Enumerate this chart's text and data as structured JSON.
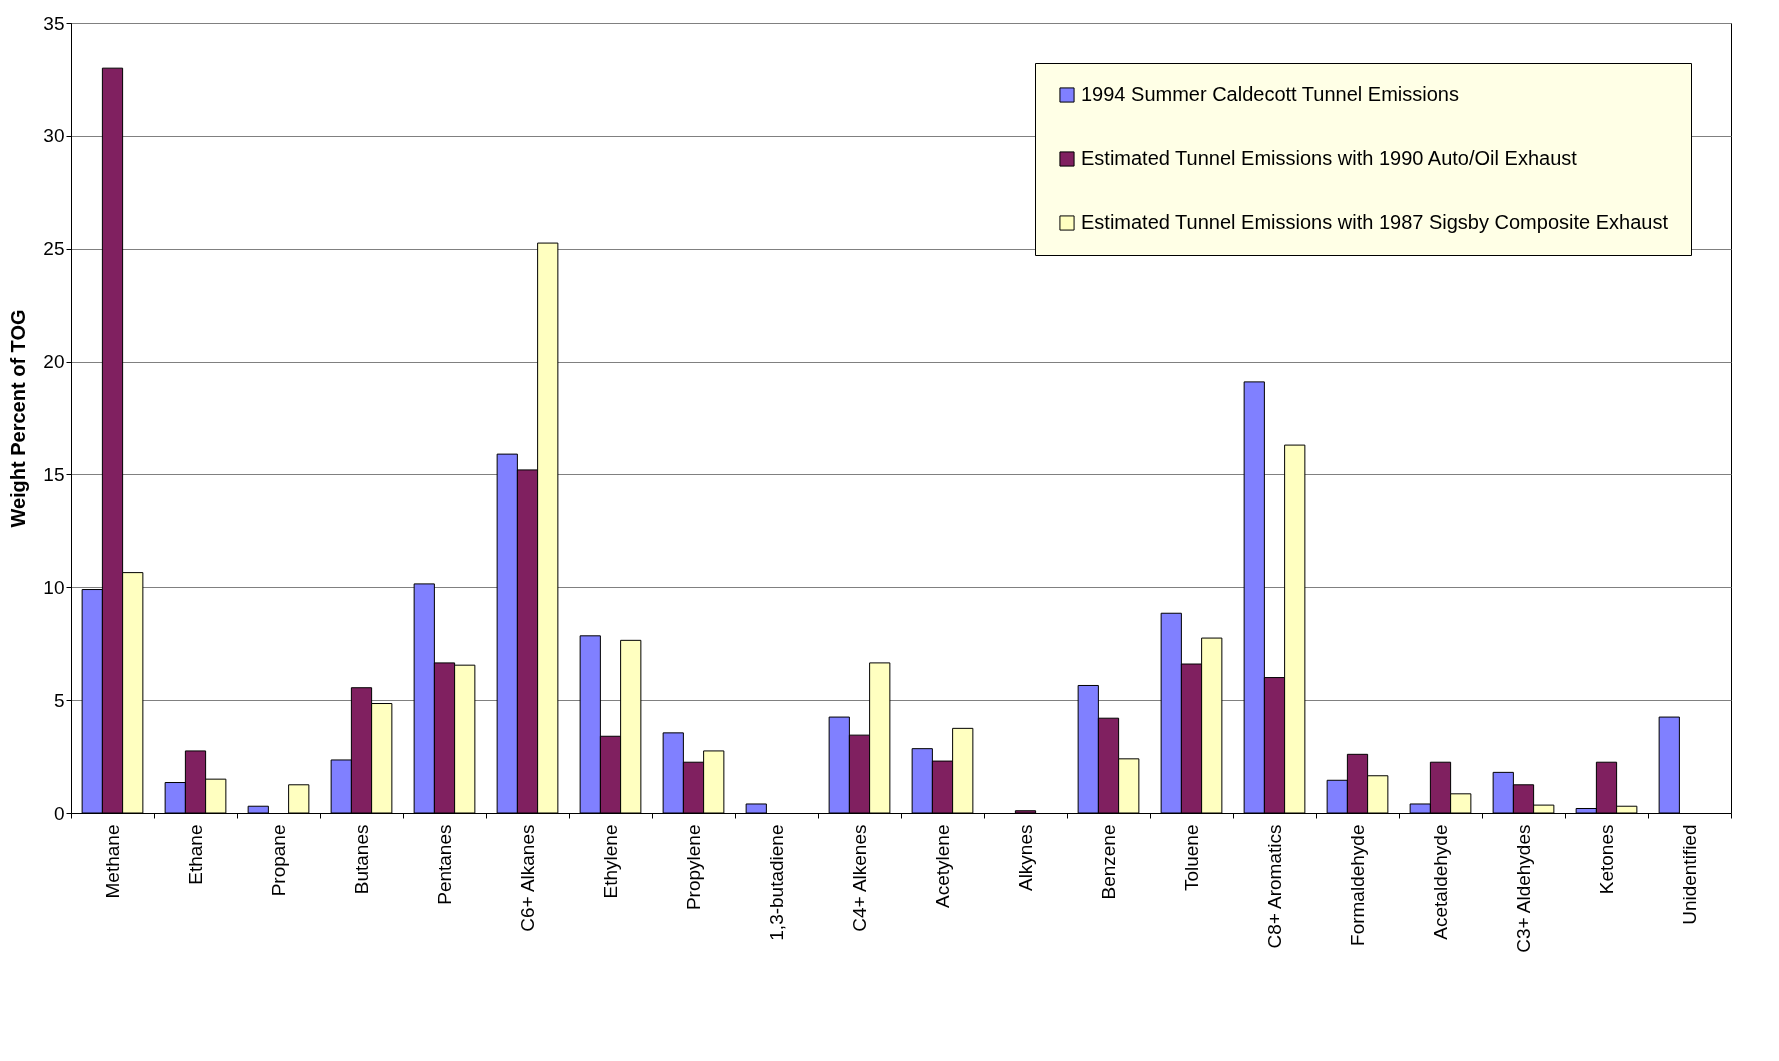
{
  "chart_data": {
    "type": "bar",
    "ylabel": "Weight Percent of TOG",
    "categories": [
      "Methane",
      "Ethane",
      "Propane",
      "Butanes",
      "Pentanes",
      "C6+ Alkanes",
      "Ethylene",
      "Propylene",
      "1,3-butadiene",
      "C4+ Alkenes",
      "Acetylene",
      "Alkynes",
      "Benzene",
      "Toluene",
      "C8+ Aromatics",
      "Formaldehyde",
      "Acetaldehyde",
      "C3+ Aldehydes",
      "Ketones",
      "Unidentified"
    ],
    "series": [
      {
        "name": "1994 Summer Caldecott Tunnel Emissions",
        "color": "#8080ff",
        "values": [
          9.9,
          1.35,
          0.3,
          2.35,
          10.15,
          15.9,
          7.85,
          3.55,
          0.4,
          4.25,
          2.85,
          null,
          5.65,
          8.85,
          19.1,
          1.45,
          0.4,
          1.8,
          0.2,
          4.25
        ]
      },
      {
        "name": "Estimated Tunnel Emissions with 1990 Auto/Oil Exhaust",
        "color": "#802060",
        "values": [
          33,
          2.75,
          null,
          5.55,
          6.65,
          15.2,
          3.4,
          2.25,
          null,
          3.45,
          2.3,
          0.1,
          4.2,
          6.6,
          6,
          2.6,
          2.25,
          1.25,
          2.25,
          null
        ]
      },
      {
        "name": "Estimated Tunnel Emissions with 1987 Sigsby Composite Exhaust",
        "color": "#ffffc0",
        "values": [
          10.65,
          1.5,
          1.25,
          4.85,
          6.55,
          25.25,
          7.65,
          2.75,
          null,
          6.65,
          3.75,
          null,
          2.4,
          7.75,
          16.3,
          1.65,
          0.85,
          0.35,
          0.3,
          null
        ]
      }
    ],
    "ylim": [
      0,
      35
    ],
    "yticks": [
      0,
      5,
      10,
      15,
      20,
      25,
      30,
      35
    ],
    "grid": "y",
    "legend": "top right"
  }
}
